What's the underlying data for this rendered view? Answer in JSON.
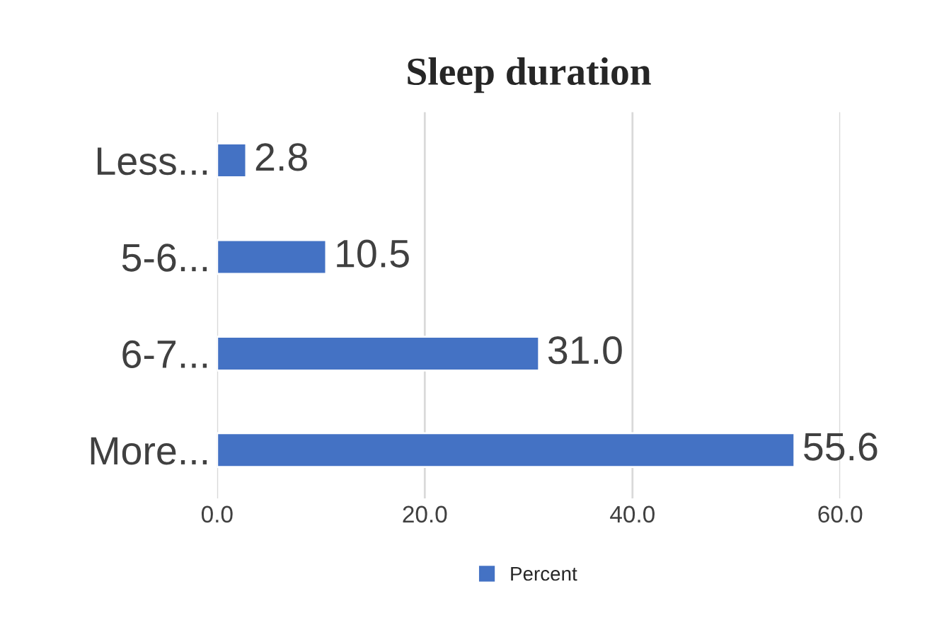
{
  "chart_data": {
    "type": "bar",
    "orientation": "horizontal",
    "title": "Sleep duration",
    "categories": [
      "Less...",
      "5-6...",
      "6-7...",
      "More..."
    ],
    "series": [
      {
        "name": "Percent",
        "color": "#4472c4",
        "values": [
          2.8,
          10.5,
          31.0,
          55.6
        ]
      }
    ],
    "value_labels": [
      "2.8",
      "10.5",
      "31.0",
      "55.6"
    ],
    "xlim": [
      0,
      60
    ],
    "xticks": [
      {
        "value": 0,
        "label": "0.0"
      },
      {
        "value": 20,
        "label": "20.0"
      },
      {
        "value": 40,
        "label": "40.0"
      },
      {
        "value": 60,
        "label": "60.0"
      }
    ],
    "grid": "x",
    "legend": "bottom"
  }
}
